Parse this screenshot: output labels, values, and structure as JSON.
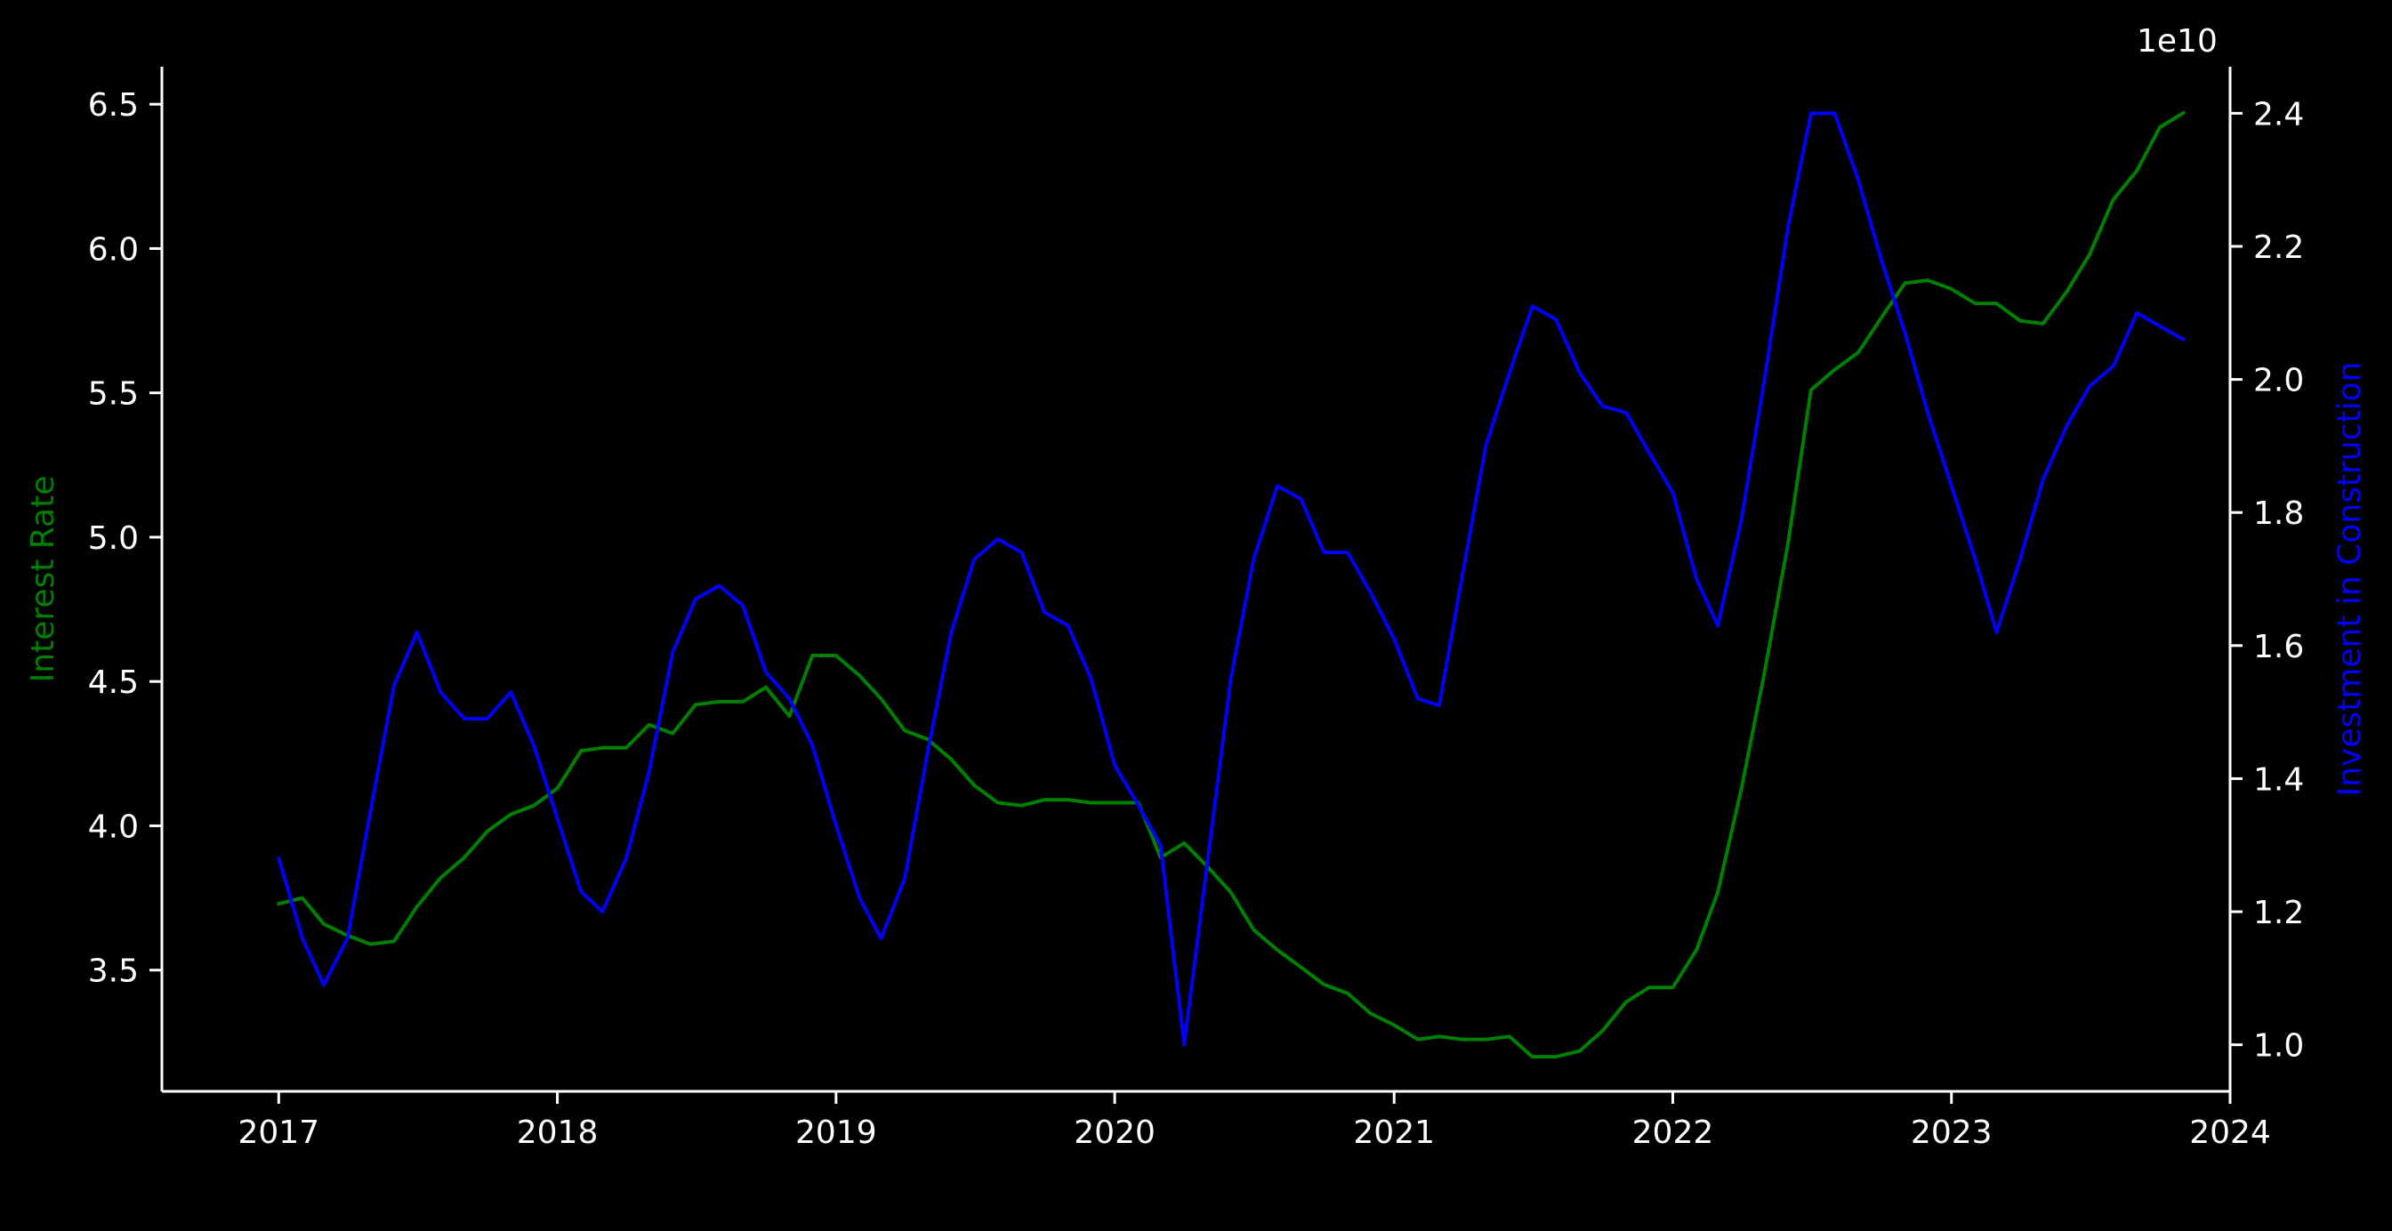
{
  "chart_data": {
    "type": "line",
    "background": "#000000",
    "x_ticks": [
      "2017",
      "2018",
      "2019",
      "2020",
      "2021",
      "2022",
      "2023",
      "2024"
    ],
    "x_range": [
      "2016-08-01",
      "2024-01-01"
    ],
    "left_axis": {
      "label": "Interest Rate",
      "color": "#008000",
      "ylim": [
        3.08,
        6.63
      ],
      "ticks": [
        "3.5",
        "4.0",
        "4.5",
        "5.0",
        "5.5",
        "6.0",
        "6.5"
      ]
    },
    "right_axis": {
      "label": "Investment in Construction",
      "color": "#0000ff",
      "offset_text": "1e10",
      "ylim": [
        0.93,
        2.47
      ],
      "ticks": [
        "1.0",
        "1.2",
        "1.4",
        "1.6",
        "1.8",
        "2.0",
        "2.2",
        "2.4"
      ]
    },
    "x": [
      "2017-01",
      "2017-02",
      "2017-03",
      "2017-04",
      "2017-05",
      "2017-06",
      "2017-07",
      "2017-08",
      "2017-09",
      "2017-10",
      "2017-11",
      "2017-12",
      "2018-01",
      "2018-02",
      "2018-03",
      "2018-04",
      "2018-05",
      "2018-06",
      "2018-07",
      "2018-08",
      "2018-09",
      "2018-10",
      "2018-11",
      "2018-12",
      "2019-01",
      "2019-02",
      "2019-03",
      "2019-04",
      "2019-05",
      "2019-06",
      "2019-07",
      "2019-08",
      "2019-09",
      "2019-10",
      "2019-11",
      "2019-12",
      "2020-01",
      "2020-02",
      "2020-03",
      "2020-04",
      "2020-05",
      "2020-06",
      "2020-07",
      "2020-08",
      "2020-09",
      "2020-10",
      "2020-11",
      "2020-12",
      "2021-01",
      "2021-02",
      "2021-03",
      "2021-04",
      "2021-05",
      "2021-06",
      "2021-07",
      "2021-08",
      "2021-09",
      "2021-10",
      "2021-11",
      "2021-12",
      "2022-01",
      "2022-02",
      "2022-03",
      "2022-04",
      "2022-05",
      "2022-06",
      "2022-07",
      "2022-08",
      "2022-09",
      "2022-10",
      "2022-11",
      "2022-12",
      "2023-01",
      "2023-02",
      "2023-03",
      "2023-04",
      "2023-05",
      "2023-06",
      "2023-07",
      "2023-08",
      "2023-09",
      "2023-10",
      "2023-11"
    ],
    "series": [
      {
        "axis": "left",
        "color": "#008000",
        "values": [
          3.73,
          3.75,
          3.66,
          3.62,
          3.59,
          3.6,
          3.72,
          3.82,
          3.89,
          3.98,
          4.04,
          4.07,
          4.13,
          4.26,
          4.27,
          4.27,
          4.35,
          4.32,
          4.42,
          4.43,
          4.43,
          4.48,
          4.38,
          4.59,
          4.59,
          4.52,
          4.44,
          4.33,
          4.3,
          4.23,
          4.14,
          4.08,
          4.07,
          4.09,
          4.09,
          4.08,
          4.08,
          4.08,
          3.89,
          3.94,
          3.86,
          3.77,
          3.64,
          3.57,
          3.51,
          3.45,
          3.42,
          3.35,
          3.31,
          3.26,
          3.27,
          3.26,
          3.26,
          3.27,
          3.2,
          3.2,
          3.22,
          3.29,
          3.39,
          3.44,
          3.44,
          3.57,
          3.77,
          4.13,
          4.53,
          4.98,
          5.51,
          5.58,
          5.64,
          5.76,
          5.88,
          5.89,
          5.86,
          5.81,
          5.81,
          5.75,
          5.74,
          5.85,
          5.98,
          6.17,
          6.27,
          6.42,
          6.47
        ]
      },
      {
        "axis": "right",
        "color": "#0000ff",
        "values": [
          1.28,
          1.16,
          1.09,
          1.16,
          1.35,
          1.54,
          1.62,
          1.53,
          1.49,
          1.49,
          1.53,
          1.45,
          1.34,
          1.23,
          1.2,
          1.28,
          1.41,
          1.59,
          1.67,
          1.69,
          1.66,
          1.56,
          1.52,
          1.45,
          1.33,
          1.22,
          1.16,
          1.25,
          1.44,
          1.62,
          1.73,
          1.76,
          1.74,
          1.65,
          1.63,
          1.55,
          1.42,
          1.36,
          1.3,
          1.0,
          1.27,
          1.55,
          1.73,
          1.84,
          1.82,
          1.74,
          1.74,
          1.68,
          1.61,
          1.52,
          1.51,
          1.71,
          1.9,
          2.01,
          2.11,
          2.09,
          2.01,
          1.96,
          1.95,
          1.89,
          1.83,
          1.7,
          1.63,
          1.79,
          2.0,
          2.23,
          2.4,
          2.4,
          2.3,
          2.18,
          2.07,
          1.95,
          1.84,
          1.73,
          1.62,
          1.73,
          1.85,
          1.93,
          1.99,
          2.02,
          2.1,
          2.08,
          2.06
        ]
      }
    ]
  }
}
